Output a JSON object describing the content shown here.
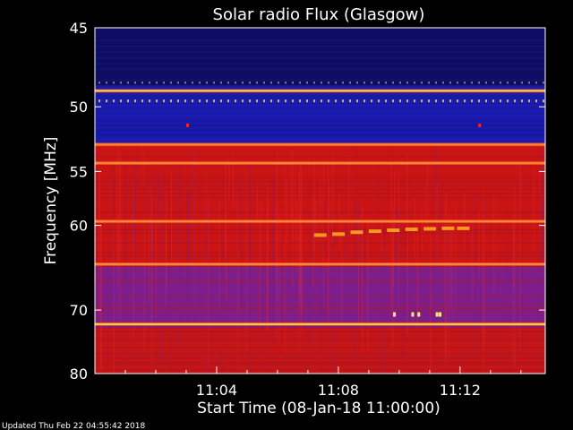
{
  "chart_data": {
    "type": "heatmap",
    "title": "Solar radio Flux (Glasgow)",
    "ylabel": "Frequency [MHz]",
    "xlabel": "Start Time (08-Jan-18 11:00:00)",
    "x_ticks": [
      "11:04",
      "11:08",
      "11:12"
    ],
    "x_tick_minutes": [
      4,
      8,
      12
    ],
    "xlim_minutes": [
      0,
      14.8
    ],
    "y_ticks": [
      45,
      50,
      55,
      60,
      70,
      80
    ],
    "ylim_mhz": [
      45,
      80
    ],
    "y_scale": "reciprocal",
    "colors": {
      "background": "#000000",
      "axes": "#ffffff",
      "low": "#1a1aa8",
      "medium": "#c81414",
      "high": "#ffd84a"
    },
    "bands_mhz": [
      {
        "from": 45,
        "to": 49.3,
        "level": "low"
      },
      {
        "from": 49.3,
        "to": 52.7,
        "level": "low"
      },
      {
        "from": 52.7,
        "to": 64.5,
        "level": "medium"
      },
      {
        "from": 64.5,
        "to": 72.5,
        "level": "low-medium"
      },
      {
        "from": 72.5,
        "to": 80,
        "level": "medium"
      }
    ],
    "bright_lines_mhz": [
      48.9,
      52.8,
      54.3,
      59.6,
      64.2,
      72.0
    ]
  },
  "footer": {
    "updated": "Updated Thu Feb 22 04:55:42 2018"
  }
}
